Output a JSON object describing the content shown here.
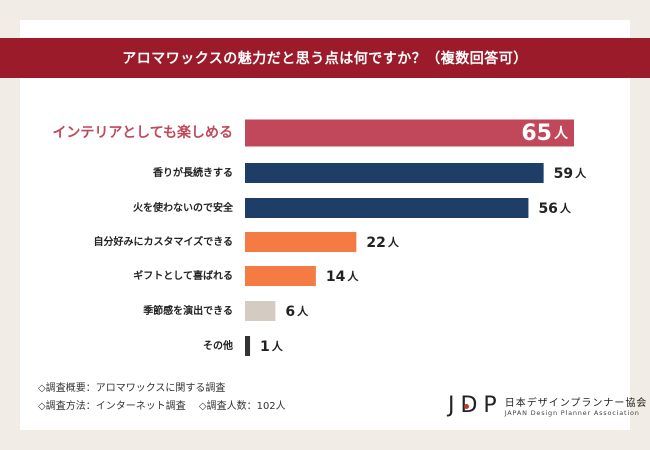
{
  "header": {
    "title": "アロマワックスの魅力だと思う点は何ですか？（複数回答可）"
  },
  "chart_data": {
    "type": "bar",
    "orientation": "horizontal",
    "title": "アロマワックスの魅力だと思う点は何ですか？（複数回答可）",
    "unit": "人",
    "categories": [
      "インテリアとしても楽しめる",
      "香りが長続きする",
      "火を使わないので安全",
      "自分好みにカスタマイズできる",
      "ギフトとして喜ばれる",
      "季節感を演出できる",
      "その他"
    ],
    "values": [
      65,
      59,
      56,
      22,
      14,
      6,
      1
    ],
    "colors": [
      "#c0485a",
      "#1f3e67",
      "#1f3e67",
      "#f47b44",
      "#f47b44",
      "#d4ccc2",
      "#333333"
    ],
    "highlight_index": 0,
    "xlim": [
      0,
      65
    ]
  },
  "notes": {
    "line1": "◇調査概要：アロマワックスに関する調査",
    "line2a": "◇調査方法：インターネット調査",
    "line2b": "◇調査人数：102人"
  },
  "logo": {
    "mark": "JDP",
    "name_jp": "日本デザインプランナー協会",
    "name_en": "JAPAN Design Planner Association"
  }
}
